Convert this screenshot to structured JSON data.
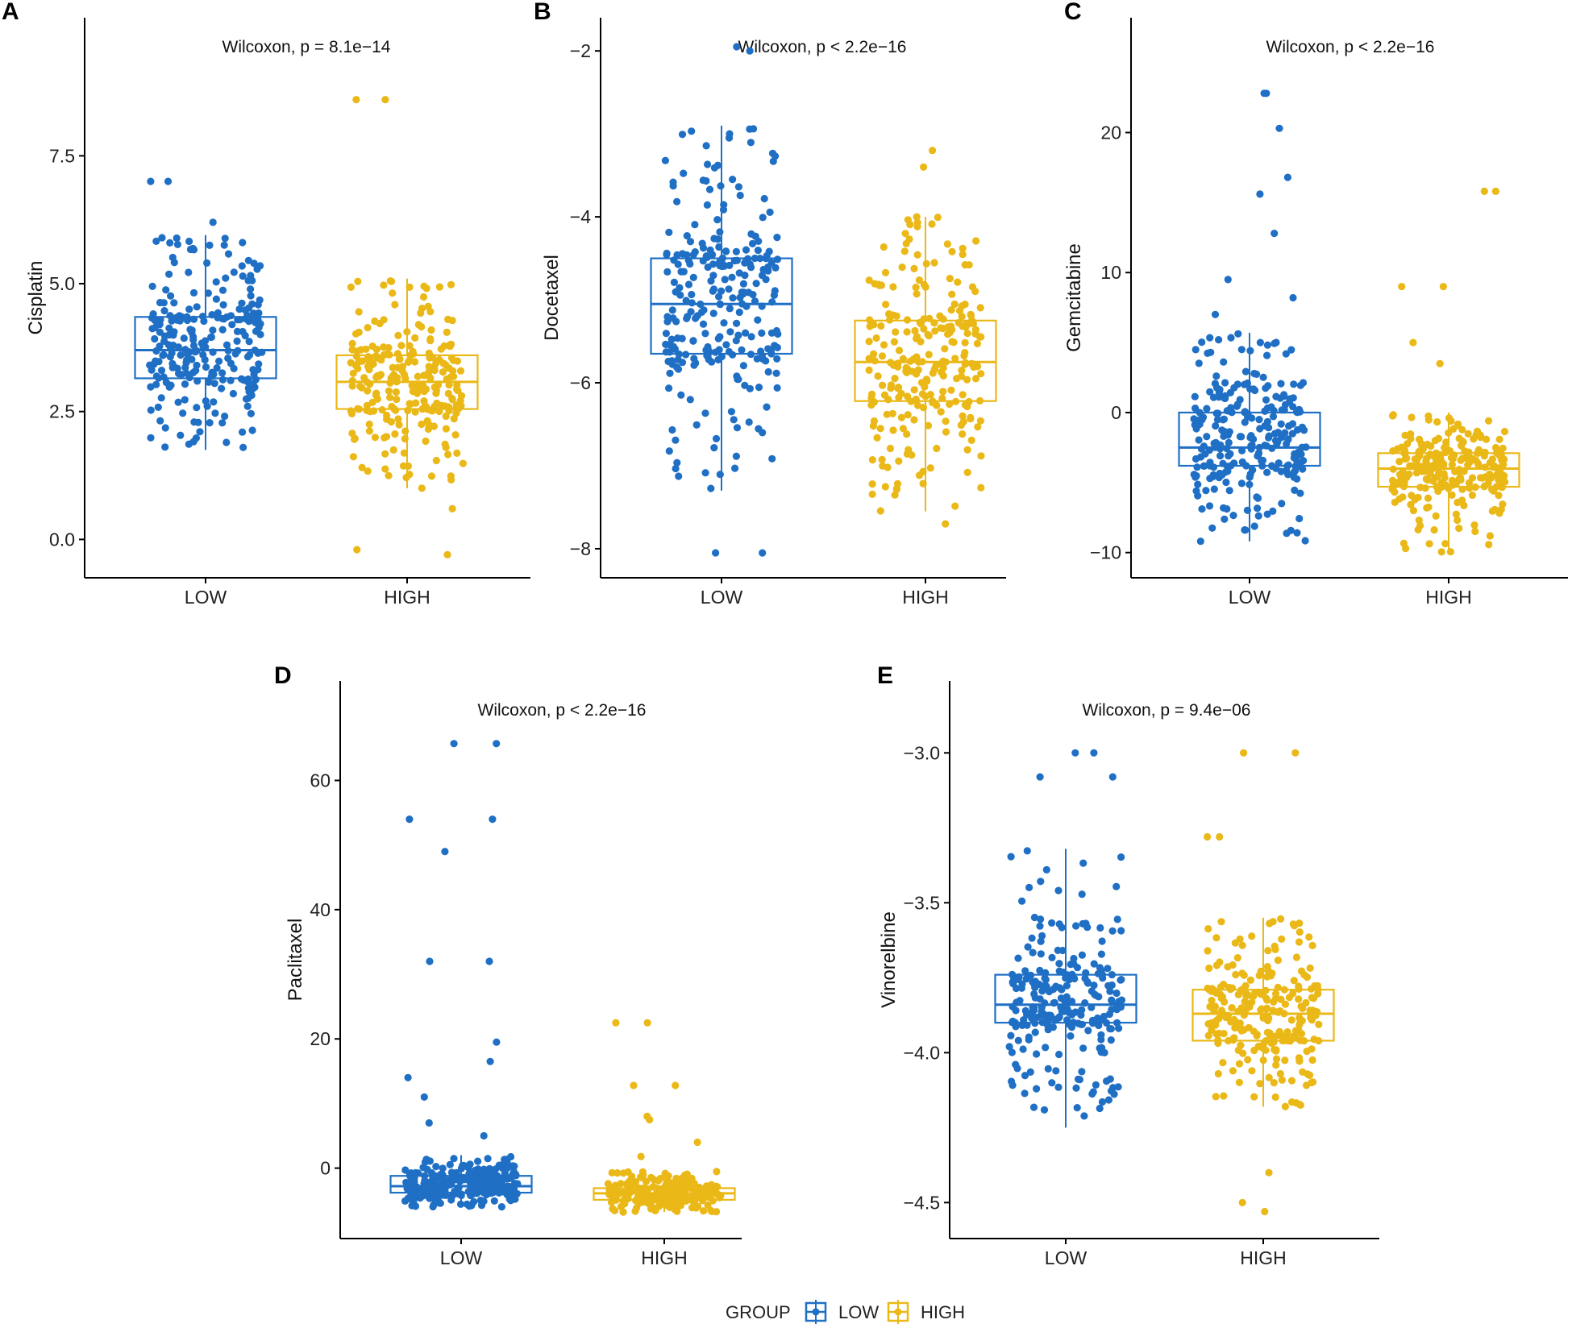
{
  "colors": {
    "low": "#1f6fc5",
    "high": "#eab817",
    "axis": "#000000"
  },
  "legend": {
    "title": "GROUP",
    "items": [
      {
        "label": "LOW",
        "color": "#1f6fc5"
      },
      {
        "label": "HIGH",
        "color": "#eab817"
      }
    ]
  },
  "chart_data": [
    {
      "id": "A",
      "type": "box",
      "panel": "A",
      "ylabel": "Cisplatin",
      "stat": "Wilcoxon, p = 8.1e−14",
      "ylim": [
        -0.75,
        10.2
      ],
      "yticks": [
        0,
        2.5,
        5,
        7.5
      ],
      "ytick_labels": [
        "0.0",
        "2.5",
        "5.0",
        "7.5"
      ],
      "categories": [
        "LOW",
        "HIGH"
      ],
      "series": [
        {
          "name": "LOW",
          "q1": 3.15,
          "median": 3.7,
          "q3": 4.35,
          "whisker_low": 1.75,
          "whisker_high": 5.95,
          "min": 1.7,
          "max": 7.0,
          "outliers": [
            6.2,
            7.0,
            7.0
          ],
          "n": 250
        },
        {
          "name": "HIGH",
          "q1": 2.55,
          "median": 3.08,
          "q3": 3.6,
          "whisker_low": 1.0,
          "whisker_high": 5.1,
          "min": -0.3,
          "max": 8.6,
          "outliers": [
            8.6,
            8.6,
            0.6,
            -0.2,
            -0.3
          ],
          "n": 250
        }
      ]
    },
    {
      "id": "B",
      "type": "box",
      "panel": "B",
      "ylabel": "Docetaxel",
      "stat": "Wilcoxon, p < 2.2e−16",
      "ylim": [
        -8.35,
        -1.6
      ],
      "yticks": [
        -8,
        -6,
        -4,
        -2
      ],
      "ytick_labels": [
        "−8",
        "−6",
        "−4",
        "−2"
      ],
      "categories": [
        "LOW",
        "HIGH"
      ],
      "series": [
        {
          "name": "LOW",
          "q1": -5.65,
          "median": -5.05,
          "q3": -4.5,
          "whisker_low": -7.3,
          "whisker_high": -2.9,
          "min": -8.05,
          "max": -1.95,
          "outliers": [
            -8.05,
            -8.05,
            -2.0,
            -1.95
          ],
          "n": 260
        },
        {
          "name": "HIGH",
          "q1": -6.22,
          "median": -5.75,
          "q3": -5.25,
          "whisker_low": -7.55,
          "whisker_high": -4.0,
          "min": -7.7,
          "max": -3.2,
          "outliers": [
            -3.2,
            -3.4,
            -7.7
          ],
          "n": 250
        }
      ]
    },
    {
      "id": "C",
      "type": "box",
      "panel": "C",
      "ylabel": "Gemcitabine",
      "stat": "Wilcoxon, p < 2.2e−16",
      "ylim": [
        -11.8,
        28.2
      ],
      "yticks": [
        -10,
        0,
        10,
        20
      ],
      "ytick_labels": [
        "−10",
        "0",
        "10",
        "20"
      ],
      "categories": [
        "LOW",
        "HIGH"
      ],
      "series": [
        {
          "name": "LOW",
          "q1": -3.8,
          "median": -2.5,
          "q3": 0.0,
          "whisker_low": -9.2,
          "whisker_high": 5.7,
          "min": -9.2,
          "max": 22.8,
          "outliers": [
            22.8,
            22.8,
            20.3,
            16.8,
            15.6,
            12.8,
            9.5,
            8.2,
            7.0
          ],
          "n": 260
        },
        {
          "name": "HIGH",
          "q1": -5.3,
          "median": -4.0,
          "q3": -2.9,
          "whisker_low": -10.0,
          "whisker_high": 0.0,
          "min": -10.2,
          "max": 15.8,
          "outliers": [
            15.8,
            15.8,
            9.0,
            9.0,
            5.0,
            3.5
          ],
          "n": 250
        }
      ]
    },
    {
      "id": "D",
      "type": "box",
      "panel": "D",
      "ylabel": "Paclitaxel",
      "stat": "Wilcoxon, p < 2.2e−16",
      "ylim": [
        -10.9,
        75.4
      ],
      "yticks": [
        0,
        20,
        40,
        60
      ],
      "ytick_labels": [
        "0",
        "20",
        "40",
        "60"
      ],
      "categories": [
        "LOW",
        "HIGH"
      ],
      "series": [
        {
          "name": "LOW",
          "q1": -3.8,
          "median": -2.8,
          "q3": -1.2,
          "whisker_low": -6.0,
          "whisker_high": 2.0,
          "min": -6.2,
          "max": 65.7,
          "outliers": [
            65.7,
            65.7,
            54.0,
            54.0,
            49.0,
            32.0,
            32.0,
            19.5,
            16.5,
            14.0,
            11.0,
            7.0,
            5.0
          ],
          "n": 260
        },
        {
          "name": "HIGH",
          "q1": -4.9,
          "median": -3.9,
          "q3": -3.1,
          "whisker_low": -6.8,
          "whisker_high": -0.5,
          "min": -7.0,
          "max": 22.5,
          "outliers": [
            22.5,
            22.5,
            12.8,
            12.8,
            8.0,
            7.5,
            4.0,
            1.8
          ],
          "n": 250
        }
      ]
    },
    {
      "id": "E",
      "type": "box",
      "panel": "E",
      "ylabel": "Vinorelbine",
      "stat": "Wilcoxon, p = 9.4e−06",
      "ylim": [
        -4.62,
        -2.76
      ],
      "yticks": [
        -4.5,
        -4.0,
        -3.5,
        -3.0
      ],
      "ytick_labels": [
        "−4.5",
        "−4.0",
        "−3.5",
        "−3.0"
      ],
      "categories": [
        "LOW",
        "HIGH"
      ],
      "series": [
        {
          "name": "LOW",
          "q1": -3.9,
          "median": -3.84,
          "q3": -3.74,
          "whisker_low": -4.25,
          "whisker_high": -3.32,
          "min": -4.25,
          "max": -3.0,
          "outliers": [
            -3.0,
            -3.0,
            -3.08,
            -3.08
          ],
          "n": 250
        },
        {
          "name": "HIGH",
          "q1": -3.96,
          "median": -3.87,
          "q3": -3.79,
          "whisker_low": -4.18,
          "whisker_high": -3.55,
          "min": -4.53,
          "max": -3.0,
          "outliers": [
            -3.0,
            -3.0,
            -3.28,
            -3.28,
            -4.53,
            -4.5,
            -4.4
          ],
          "n": 250
        }
      ]
    }
  ]
}
